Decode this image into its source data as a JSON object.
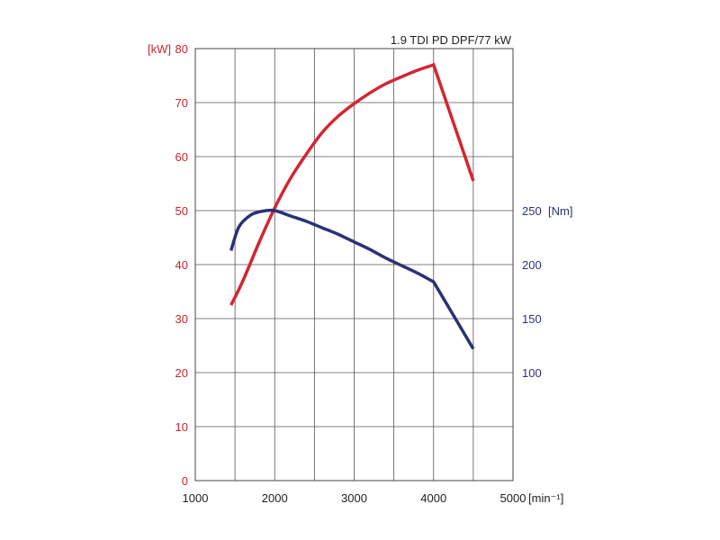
{
  "chart_data": {
    "type": "line",
    "title": "1.9 TDI PD DPF/77 kW",
    "xlabel": "[min⁻¹]",
    "ylabel_left": "[kW]",
    "ylabel_right": "[Nm]",
    "xlim": [
      1000,
      5000
    ],
    "ylim_left": [
      0,
      80
    ],
    "x_ticks": [
      "1000",
      "2000",
      "3000",
      "4000",
      "5000"
    ],
    "y_ticks_left": [
      "0",
      "10",
      "20",
      "30",
      "40",
      "50",
      "60",
      "70",
      "80"
    ],
    "right_axis": {
      "ticks": [
        "100",
        "150",
        "200",
        "250"
      ],
      "tick_values": [
        100,
        150,
        200,
        250
      ]
    },
    "grid": true,
    "colors": {
      "power": "#d32630",
      "torque": "#2a3276"
    },
    "series": [
      {
        "axis": "left",
        "x": [
          1450,
          1600,
          1800,
          2000,
          2200,
          2400,
          2600,
          2800,
          3000,
          3200,
          3400,
          3600,
          3800,
          4000,
          4500
        ],
        "values": [
          32.5,
          37,
          44,
          50.5,
          56,
          60.5,
          64.5,
          67.5,
          69.8,
          71.8,
          73.5,
          74.8,
          76,
          77,
          55.5
        ]
      },
      {
        "axis": "right",
        "x": [
          1450,
          1550,
          1700,
          1850,
          2000,
          2200,
          2400,
          2600,
          2800,
          3000,
          3200,
          3400,
          3600,
          3800,
          4000,
          4500
        ],
        "values": [
          213,
          235,
          246,
          249.5,
          250,
          245,
          240,
          234,
          228,
          221,
          214,
          206,
          199,
          192,
          184,
          122
        ]
      }
    ]
  }
}
